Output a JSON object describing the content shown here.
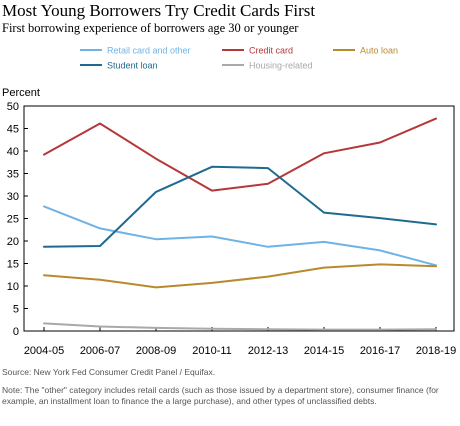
{
  "chart_data": {
    "type": "line",
    "title": "Most Young Borrowers Try Credit Cards First",
    "subtitle": "First borrowing experience of borrowers age 30 or younger",
    "ylabel": "Percent",
    "xlabel": "",
    "categories": [
      "2004-05",
      "2006-07",
      "2008-09",
      "2010-11",
      "2012-13",
      "2014-15",
      "2016-17",
      "2018-19"
    ],
    "ylim": [
      0,
      50
    ],
    "yticks": [
      0,
      5,
      10,
      15,
      20,
      25,
      30,
      35,
      40,
      45,
      50
    ],
    "grid": false,
    "legend_position": "top",
    "series": [
      {
        "name": "Retail card and other",
        "color": "#6fb3e6",
        "values": [
          27.7,
          22.8,
          20.4,
          21.0,
          18.7,
          19.8,
          17.9,
          14.6
        ]
      },
      {
        "name": "Credit card",
        "color": "#b5373a",
        "values": [
          39.2,
          46.1,
          38.3,
          31.2,
          32.7,
          39.5,
          41.9,
          47.2
        ]
      },
      {
        "name": "Auto loan",
        "color": "#b88a2e",
        "values": [
          12.4,
          11.4,
          9.7,
          10.7,
          12.1,
          14.1,
          14.8,
          14.4
        ]
      },
      {
        "name": "Student loan",
        "color": "#1f6b8f",
        "values": [
          18.7,
          18.9,
          30.9,
          36.5,
          36.2,
          26.3,
          25.1,
          23.7
        ]
      },
      {
        "name": "Housing-related",
        "color": "#a9a9a9",
        "values": [
          1.7,
          1.0,
          0.7,
          0.5,
          0.4,
          0.3,
          0.3,
          0.4
        ]
      }
    ],
    "source": "Source: New York Fed Consumer Credit Panel / Equifax.",
    "note": "Note: The \"other\" category includes retail cards (such as those issued by a department store), consumer finance (for example, an installment loan to finance the a large purchase), and other types of unclassified debts."
  }
}
